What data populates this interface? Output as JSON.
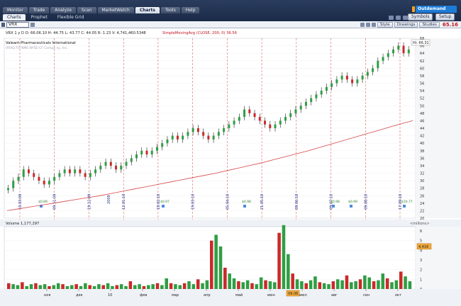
{
  "nav": {
    "primary_tabs": [
      "Monitor",
      "Trade",
      "Analyze",
      "Scan",
      "MarketWatch",
      "Charts",
      "Tools",
      "Help"
    ],
    "active_primary": "Charts",
    "secondary_tabs": [
      "Charts",
      "Prophet",
      "Flexible Grid"
    ],
    "active_secondary": "Charts",
    "brand": "Outdemand",
    "symbols_button": "Symbols",
    "setup_button": "Setup"
  },
  "toolbar": {
    "symbol": "VRX",
    "style_button": "Style",
    "drawings_button": "Drawings",
    "studies_button": "Studies",
    "last_price": "65.16"
  },
  "chart": {
    "info_line": "VRX 1 y D  O: 66.06.10  H: 44.75  L: 43.77  C: 44.05  R: 1.23  V: 4,741,460.5348  SimpleMovingAvg (CLOSE, 200, 0) 36.56",
    "info_parts": [
      "VRX 1 y D",
      "O: 66.06.10",
      "H: 44.75",
      "L: 43.77",
      "C: 44.05",
      "R: 1.23",
      "V: 4,741,460.5348"
    ],
    "study_label": "SimpleMovingAvg (CLOSE, 200, 0) 36.56",
    "company": "Valeant Pharmaceuticals International",
    "exchange_line": "VRXQ.TO NMS NYSE-CF  Compa ny, Inc.",
    "hi_label": "Hi: 66.31",
    "price_scale": [
      "68",
      "66",
      "64",
      "62",
      "60",
      "58",
      "56",
      "54",
      "52",
      "50",
      "48",
      "46",
      "44",
      "42",
      "40",
      "38",
      "36",
      "34",
      "32",
      "30",
      "28",
      "26",
      "24",
      "22",
      "20"
    ],
    "event_dates": [
      "10.03.09",
      "09.11.09",
      "19.12.09",
      "12.01.10",
      "19.02.10",
      "19.03.10",
      "05.04.10",
      "21.05.10",
      "09.06.10",
      "09.07.10",
      "09.08.10",
      "17.09.10"
    ],
    "dividend_labels": [
      "$0.89",
      "$0.97",
      "$0.98",
      "$0.98",
      "$0.99",
      "$16.77"
    ],
    "year_label": "2009"
  },
  "volume": {
    "header": "Volume  1,177,297",
    "unit": "<millions>",
    "scale": [
      "6",
      "5",
      "4",
      "3",
      "2",
      "1",
      "0"
    ],
    "current": "4.416"
  },
  "xaxis": {
    "labels": [
      "ноя",
      "дек",
      "10",
      "фев",
      "мар",
      "апр",
      "май",
      "июн",
      "июл",
      "авг",
      "сен",
      "окт"
    ],
    "highlight": "09.06"
  },
  "chart_data": {
    "type": "candlestick",
    "title": "Valeant Pharmaceuticals International",
    "ylim": [
      20,
      68
    ],
    "ma_name": "SimpleMovingAvg (CLOSE, 200, 0)",
    "close_points": [
      28,
      30,
      31,
      33,
      32,
      31,
      30,
      29,
      30,
      31,
      32,
      33,
      32,
      33,
      32,
      31,
      32,
      33,
      34,
      35,
      34,
      33,
      34,
      35,
      36,
      37,
      38,
      37,
      38,
      39,
      40,
      41,
      42,
      41,
      42,
      43,
      44,
      43,
      42,
      41,
      42,
      43,
      44,
      45,
      46,
      47,
      49,
      48,
      47,
      46,
      45,
      44,
      45,
      46,
      47,
      48,
      49,
      50,
      51,
      52,
      53,
      54,
      55,
      56,
      57,
      58,
      57,
      56,
      57,
      58,
      59,
      60,
      62,
      63,
      64,
      65,
      66,
      64,
      65
    ],
    "ma_points": [
      22,
      22.5,
      23,
      23.5,
      24,
      24.5,
      25,
      25.5,
      26,
      26.6,
      27.2,
      27.8,
      28.4,
      29,
      29.6,
      30.2,
      30.8,
      31.4,
      32,
      32.7,
      33.4,
      34.1,
      34.8,
      35.6,
      36.4,
      37.2,
      38,
      38.9,
      39.8,
      40.7,
      41.6,
      42.5,
      43.4,
      44.3,
      45.2,
      46
    ],
    "volume_points": [
      0.6,
      0.5,
      0.4,
      0.7,
      0.3,
      0.5,
      0.6,
      0.4,
      0.5,
      0.3,
      0.4,
      0.6,
      0.5,
      0.3,
      0.4,
      0.5,
      0.3,
      0.6,
      0.4,
      0.3,
      0.5,
      0.4,
      0.6,
      0.3,
      0.4,
      0.5,
      0.3,
      0.8,
      0.4,
      0.5,
      0.3,
      0.4,
      0.5,
      0.6,
      0.4,
      1.1,
      0.6,
      0.5,
      0.4,
      0.6,
      0.8,
      0.5,
      1.0,
      0.6,
      0.9,
      5.0,
      5.6,
      4.4,
      2.2,
      1.6,
      1.1,
      0.8,
      0.7,
      0.9,
      0.6,
      0.5,
      1.2,
      0.9,
      0.8,
      0.7,
      5.8,
      6.6,
      3.6,
      1.6,
      1.0,
      0.8,
      0.6,
      0.9,
      1.3,
      0.7,
      0.6,
      0.5,
      0.8,
      1.0,
      0.9,
      1.4,
      0.7,
      0.8,
      1.0,
      1.4,
      1.2,
      0.8,
      0.9,
      1.6,
      1.1,
      0.7,
      0.9,
      1.8,
      1.3,
      0.8
    ]
  }
}
